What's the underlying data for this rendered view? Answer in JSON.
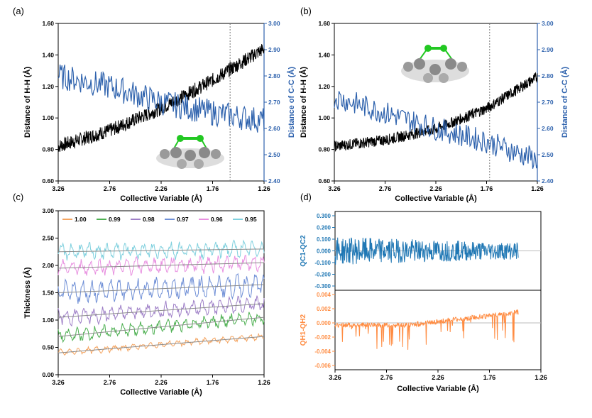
{
  "chart_data": [
    {
      "panel": "(a)",
      "type": "line",
      "xlabel": "Collective Variable (Å)",
      "ylabel": "Distance of H-H (Å)",
      "y2label": "Distance of C-C (Å)",
      "xlim": [
        3.26,
        1.26
      ],
      "ylim": [
        0.6,
        1.6
      ],
      "y2lim": [
        2.4,
        3.0
      ],
      "xticks": [
        "3.26",
        "2.76",
        "2.26",
        "1.76",
        "1.26"
      ],
      "yticks": [
        "0.60",
        "0.80",
        "1.00",
        "1.20",
        "1.40",
        "1.60"
      ],
      "y2ticks": [
        "2.40",
        "2.50",
        "2.60",
        "2.70",
        "2.80",
        "2.90",
        "3.00"
      ],
      "vline": 1.59,
      "series": [
        {
          "name": "H-H",
          "axis": "left",
          "color": "#000000",
          "x": [
            3.26,
            2.76,
            2.26,
            1.76,
            1.26
          ],
          "values": [
            0.82,
            0.92,
            1.06,
            1.24,
            1.44
          ],
          "noise": 0.045
        },
        {
          "name": "C-C",
          "axis": "right",
          "color": "#2e62ad",
          "x": [
            3.26,
            2.76,
            2.26,
            1.76,
            1.26
          ],
          "values": [
            2.8,
            2.76,
            2.7,
            2.66,
            2.63
          ],
          "noise": 0.05
        }
      ]
    },
    {
      "panel": "(b)",
      "type": "line",
      "xlabel": "Collective Variable (Å)",
      "ylabel": "Distance of H-H (Å)",
      "y2label": "Distance of C-C (Å)",
      "xlim": [
        3.26,
        1.26
      ],
      "ylim": [
        0.6,
        1.6
      ],
      "y2lim": [
        2.4,
        3.0
      ],
      "xticks": [
        "3.26",
        "2.76",
        "2.26",
        "1.76",
        "1.26"
      ],
      "yticks": [
        "0.60",
        "0.80",
        "1.00",
        "1.20",
        "1.40",
        "1.60"
      ],
      "y2ticks": [
        "2.40",
        "2.50",
        "2.60",
        "2.70",
        "2.80",
        "2.90",
        "3.00"
      ],
      "vline": 1.73,
      "series": [
        {
          "name": "H-H",
          "axis": "left",
          "color": "#000000",
          "x": [
            3.26,
            2.76,
            2.26,
            1.76,
            1.26
          ],
          "values": [
            0.82,
            0.86,
            0.93,
            1.06,
            1.26
          ],
          "noise": 0.035
        },
        {
          "name": "C-C",
          "axis": "right",
          "color": "#2e62ad",
          "x": [
            3.26,
            2.76,
            2.26,
            1.76,
            1.26
          ],
          "values": [
            2.72,
            2.66,
            2.6,
            2.55,
            2.48
          ],
          "noise": 0.045
        }
      ]
    },
    {
      "panel": "(c)",
      "type": "line",
      "xlabel": "Collective Variable (Å)",
      "ylabel": "Thickness (Å)",
      "xlim": [
        3.26,
        1.26
      ],
      "ylim": [
        0.0,
        3.0
      ],
      "xticks": [
        "3.26",
        "2.76",
        "2.26",
        "1.76",
        "1.26"
      ],
      "yticks": [
        "0.00",
        "0.50",
        "1.00",
        "1.50",
        "2.00",
        "2.50",
        "3.00"
      ],
      "legend": [
        "1.00",
        "0.99",
        "0.98",
        "0.97",
        "0.96",
        "0.95"
      ],
      "series": [
        {
          "name": "1.00",
          "color": "#f4a460",
          "x": [
            3.26,
            1.26
          ],
          "values": [
            0.4,
            0.7
          ],
          "noise": 0.06
        },
        {
          "name": "0.99",
          "color": "#4caf50",
          "x": [
            3.26,
            1.26
          ],
          "values": [
            0.7,
            1.05
          ],
          "noise": 0.12
        },
        {
          "name": "0.98",
          "color": "#9e7fc7",
          "x": [
            3.26,
            1.26
          ],
          "values": [
            1.05,
            1.3
          ],
          "noise": 0.15
        },
        {
          "name": "0.97",
          "color": "#6f8fd6",
          "x": [
            3.26,
            1.26
          ],
          "values": [
            1.5,
            1.65
          ],
          "noise": 0.2
        },
        {
          "name": "0.96",
          "color": "#e88fe0",
          "x": [
            3.26,
            1.26
          ],
          "values": [
            1.95,
            2.05
          ],
          "noise": 0.15
        },
        {
          "name": "0.95",
          "color": "#7fd0de",
          "x": [
            3.26,
            1.26
          ],
          "values": [
            2.25,
            2.3
          ],
          "noise": 0.15
        }
      ]
    },
    {
      "panel": "(d)",
      "type": "line",
      "xlabel": "Collective Variable (Å)",
      "xlim": [
        3.26,
        1.26
      ],
      "xticks": [
        "3.26",
        "2.76",
        "2.26",
        "1.76",
        "1.26"
      ],
      "subplots": [
        {
          "ylabel": "QC1-QC2",
          "ylim": [
            -0.3,
            0.3
          ],
          "yticks": [
            "-0.300",
            "-0.200",
            "-0.100",
            "0.000",
            "0.100",
            "0.200",
            "0.300"
          ],
          "color": "#1f77b4",
          "x_range": [
            3.26,
            1.48
          ],
          "noise": 0.12
        },
        {
          "ylabel": "QH1-QH2",
          "ylim": [
            -0.006,
            0.004
          ],
          "yticks": [
            "-0.006",
            "-0.004",
            "-0.002",
            "0.000",
            "0.002",
            "0.004"
          ],
          "color": "#ff8c42",
          "x_range": [
            3.26,
            1.48
          ],
          "noise": 0.0012
        }
      ]
    }
  ]
}
